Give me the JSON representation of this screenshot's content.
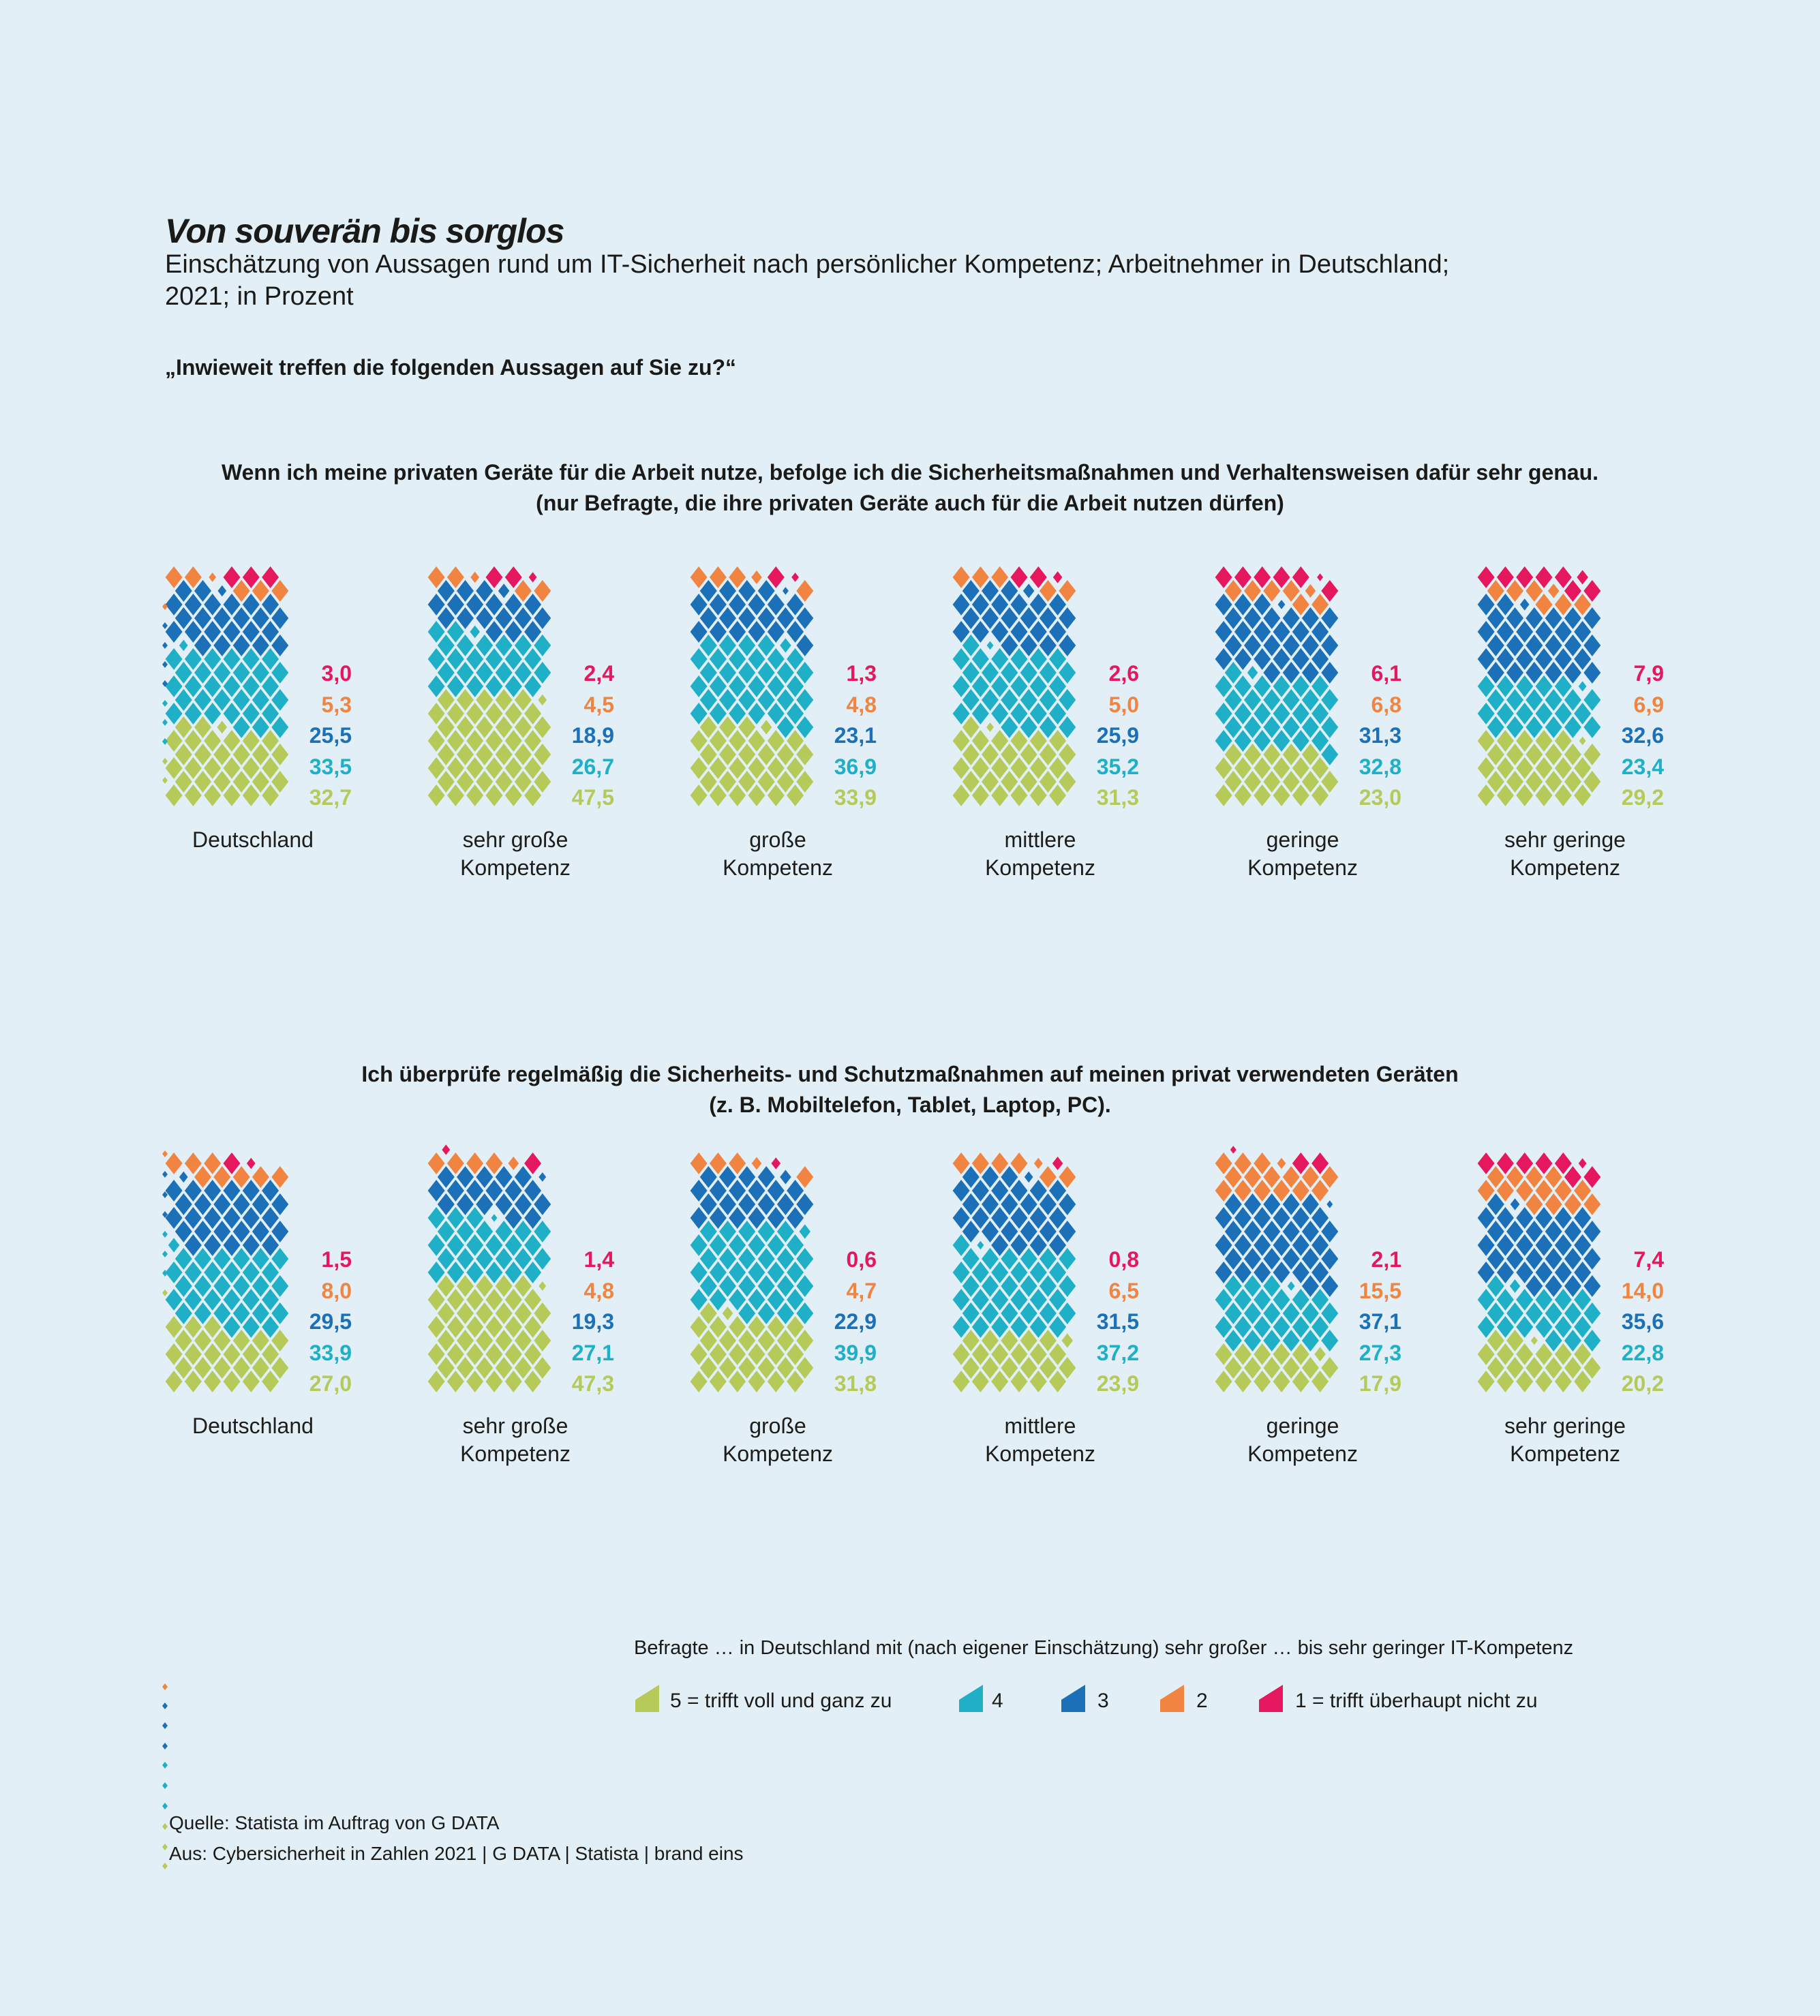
{
  "title": "Von souverän bis sorglos",
  "subtitle": {
    "line1": "Einschätzung von Aussagen rund um IT-Sicherheit nach persönlicher Kompetenz; Arbeitnehmer in Deutschland;",
    "line2": "2021; in Prozent"
  },
  "question": "„Inwieweit treffen die folgenden Aussagen auf Sie zu?“",
  "palette": {
    "scale5_green": "#b6ca5a",
    "scale4_cyan": "#1fb0c7",
    "scale3_blue": "#1b70b7",
    "scale2_orange": "#f08440",
    "scale1_pink": "#e5175f",
    "text": "#1a1a18",
    "background": "#e2eff6"
  },
  "legend": {
    "intro": "Befragte … in Deutschland mit (nach eigener Einschätzung) sehr großer … bis sehr geringer IT-Kompetenz",
    "items": [
      {
        "label": "5 = trifft voll und ganz zu",
        "color_key": "scale5_green"
      },
      {
        "label": "4",
        "color_key": "scale4_cyan"
      },
      {
        "label": "3",
        "color_key": "scale3_blue"
      },
      {
        "label": "2",
        "color_key": "scale2_orange"
      },
      {
        "label": "1 = trifft überhaupt nicht zu",
        "color_key": "scale1_pink"
      }
    ]
  },
  "source": {
    "line1": "Quelle: Statista im Auftrag von G DATA",
    "line2": "Aus: Cybersicherheit in Zahlen 2021 | G DATA | Statista | brand eins"
  },
  "chart_data": [
    {
      "type": "waffle",
      "statement_line1": "Wenn ich meine privaten Geräte für die Arbeit nutze, befolge ich die Sicherheitsmaßnahmen und Verhaltensweisen dafür sehr genau.",
      "statement_line2": "(nur Befragte, die ihre privaten Geräte auch für die Arbeit nutzen dürfen)",
      "unit": "Prozent",
      "categories": [
        "Deutschland",
        "sehr große Kompetenz",
        "große Kompetenz",
        "mittlere Kompetenz",
        "geringe Kompetenz",
        "sehr geringe Kompetenz"
      ],
      "series": [
        {
          "name": "1 = trifft überhaupt nicht zu",
          "color_key": "scale1_pink",
          "values": [
            3.0,
            2.4,
            1.3,
            2.6,
            6.1,
            7.9
          ]
        },
        {
          "name": "2",
          "color_key": "scale2_orange",
          "values": [
            5.3,
            4.5,
            4.8,
            5.0,
            6.8,
            6.9
          ]
        },
        {
          "name": "3",
          "color_key": "scale3_blue",
          "values": [
            25.5,
            18.9,
            23.1,
            25.9,
            31.3,
            32.6
          ]
        },
        {
          "name": "4",
          "color_key": "scale4_cyan",
          "values": [
            33.5,
            26.7,
            36.9,
            35.2,
            32.8,
            23.4
          ]
        },
        {
          "name": "5 = trifft voll und ganz zu",
          "color_key": "scale5_green",
          "values": [
            32.7,
            47.5,
            33.9,
            31.3,
            23.0,
            29.2
          ]
        }
      ]
    },
    {
      "type": "waffle",
      "statement_line1": "Ich überprüfe regelmäßig die Sicherheits- und Schutzmaßnahmen auf meinen privat verwendeten Geräten",
      "statement_line2": "(z. B. Mobiltelefon, Tablet, Laptop, PC).",
      "unit": "Prozent",
      "categories": [
        "Deutschland",
        "sehr große Kompetenz",
        "große Kompetenz",
        "mittlere Kompetenz",
        "geringe Kompetenz",
        "sehr geringe Kompetenz"
      ],
      "series": [
        {
          "name": "1 = trifft überhaupt nicht zu",
          "color_key": "scale1_pink",
          "values": [
            1.5,
            1.4,
            0.6,
            0.8,
            2.1,
            7.4
          ]
        },
        {
          "name": "2",
          "color_key": "scale2_orange",
          "values": [
            8.0,
            4.8,
            4.7,
            6.5,
            15.5,
            14.0
          ]
        },
        {
          "name": "3",
          "color_key": "scale3_blue",
          "values": [
            29.5,
            19.3,
            22.9,
            31.5,
            37.1,
            35.6
          ]
        },
        {
          "name": "4",
          "color_key": "scale4_cyan",
          "values": [
            33.9,
            27.1,
            39.9,
            37.2,
            27.3,
            22.8
          ]
        },
        {
          "name": "5 = trifft voll und ganz zu",
          "color_key": "scale5_green",
          "values": [
            27.0,
            47.3,
            31.8,
            23.9,
            17.9,
            20.2
          ]
        }
      ]
    }
  ],
  "decor": {
    "edge_tips_x": 242,
    "edge_tips": [
      [
        890,
        "scale2_orange"
      ],
      [
        918,
        "scale3_blue"
      ],
      [
        947,
        "scale3_blue"
      ],
      [
        975,
        "scale3_blue"
      ],
      [
        1003,
        "scale3_blue"
      ],
      [
        1032,
        "scale4_cyan"
      ],
      [
        1060,
        "scale4_cyan"
      ],
      [
        1088,
        "scale4_cyan"
      ],
      [
        1117,
        "scale5_green"
      ],
      [
        1145,
        "scale5_green"
      ],
      [
        1693,
        "scale2_orange"
      ],
      [
        1723,
        "scale3_blue"
      ],
      [
        1753,
        "scale3_blue"
      ],
      [
        1782,
        "scale3_blue"
      ],
      [
        1811,
        "scale4_cyan"
      ],
      [
        1840,
        "scale4_cyan"
      ],
      [
        1868,
        "scale4_cyan"
      ],
      [
        1897,
        "scale5_green"
      ],
      [
        2475,
        "scale2_orange"
      ],
      [
        2503,
        "scale3_blue"
      ],
      [
        2532,
        "scale3_blue"
      ],
      [
        2562,
        "scale3_blue"
      ],
      [
        2590,
        "scale4_cyan"
      ],
      [
        2620,
        "scale4_cyan"
      ],
      [
        2650,
        "scale4_cyan"
      ],
      [
        2680,
        "scale5_green"
      ],
      [
        2710,
        "scale5_green"
      ],
      [
        2738,
        "scale5_green"
      ]
    ]
  }
}
